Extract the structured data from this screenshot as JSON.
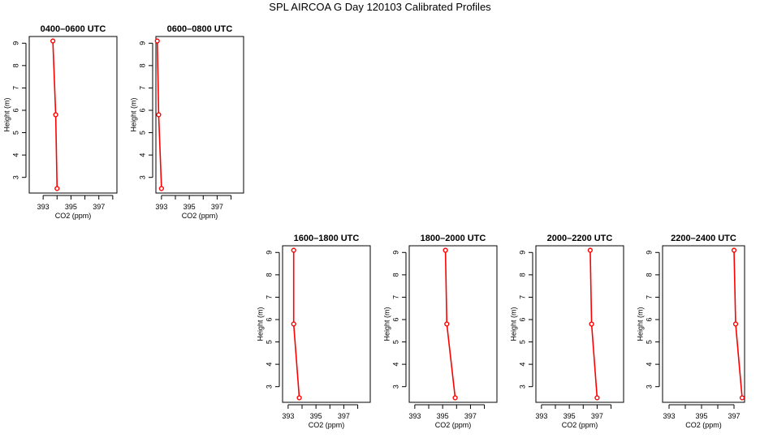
{
  "page": {
    "title": "SPL AIRCOA G  Day 120103  Calibrated Profiles"
  },
  "chart_data": [
    {
      "type": "line",
      "title": "0400–0600 UTC",
      "xlabel": "CO2 (ppm)",
      "ylabel": "Height (m)",
      "xlim": [
        392.0,
        398.3
      ],
      "ylim": [
        2.3,
        9.3
      ],
      "xticks": [
        393,
        394,
        395,
        396,
        397,
        398
      ],
      "xtick_labels": [
        "393",
        "",
        "395",
        "",
        "397",
        ""
      ],
      "yticks": [
        3,
        4,
        5,
        6,
        7,
        8,
        9
      ],
      "series": [
        {
          "x": [
            393.7,
            393.9,
            394.0
          ],
          "y": [
            9.1,
            5.8,
            2.5
          ],
          "color": "#ff0000"
        }
      ]
    },
    {
      "type": "line",
      "title": "0600–0800 UTC",
      "xlabel": "CO2 (ppm)",
      "ylabel": "Height (m)",
      "xlim": [
        392.6,
        398.9
      ],
      "ylim": [
        2.3,
        9.3
      ],
      "xticks": [
        393,
        394,
        395,
        396,
        397,
        398
      ],
      "xtick_labels": [
        "393",
        "",
        "395",
        "",
        "397",
        ""
      ],
      "yticks": [
        3,
        4,
        5,
        6,
        7,
        8,
        9
      ],
      "series": [
        {
          "x": [
            392.7,
            392.8,
            393.0
          ],
          "y": [
            9.1,
            5.8,
            2.5
          ],
          "color": "#ff0000"
        }
      ]
    },
    {
      "type": "line",
      "title": "1600–1800 UTC",
      "xlabel": "CO2 (ppm)",
      "ylabel": "Height (m)",
      "xlim": [
        392.6,
        398.9
      ],
      "ylim": [
        2.3,
        9.3
      ],
      "xticks": [
        393,
        394,
        395,
        396,
        397,
        398
      ],
      "xtick_labels": [
        "393",
        "",
        "395",
        "",
        "397",
        ""
      ],
      "yticks": [
        3,
        4,
        5,
        6,
        7,
        8,
        9
      ],
      "series": [
        {
          "x": [
            393.4,
            393.4,
            393.8
          ],
          "y": [
            9.1,
            5.8,
            2.5
          ],
          "color": "#ff0000"
        }
      ]
    },
    {
      "type": "line",
      "title": "1800–2000 UTC",
      "xlabel": "CO2 (ppm)",
      "ylabel": "Height (m)",
      "xlim": [
        392.6,
        398.9
      ],
      "ylim": [
        2.3,
        9.3
      ],
      "xticks": [
        393,
        394,
        395,
        396,
        397,
        398
      ],
      "xtick_labels": [
        "393",
        "",
        "395",
        "",
        "397",
        ""
      ],
      "yticks": [
        3,
        4,
        5,
        6,
        7,
        8,
        9
      ],
      "series": [
        {
          "x": [
            395.2,
            395.3,
            395.9
          ],
          "y": [
            9.1,
            5.8,
            2.5
          ],
          "color": "#ff0000"
        }
      ]
    },
    {
      "type": "line",
      "title": "2000–2200 UTC",
      "xlabel": "CO2 (ppm)",
      "ylabel": "Height (m)",
      "xlim": [
        392.6,
        398.9
      ],
      "ylim": [
        2.3,
        9.3
      ],
      "xticks": [
        393,
        394,
        395,
        396,
        397,
        398
      ],
      "xtick_labels": [
        "393",
        "",
        "395",
        "",
        "397",
        ""
      ],
      "yticks": [
        3,
        4,
        5,
        6,
        7,
        8,
        9
      ],
      "series": [
        {
          "x": [
            396.5,
            396.6,
            397.0
          ],
          "y": [
            9.1,
            5.8,
            2.5
          ],
          "color": "#ff0000"
        }
      ]
    },
    {
      "type": "line",
      "title": "2200–2400 UTC",
      "xlabel": "CO2 (ppm)",
      "ylabel": "Height (m)",
      "xlim": [
        392.6,
        397.65
      ],
      "ylim": [
        2.3,
        9.3
      ],
      "xticks": [
        393,
        394,
        395,
        396,
        397
      ],
      "xtick_labels": [
        "393",
        "",
        "395",
        "",
        "397"
      ],
      "yticks": [
        3,
        4,
        5,
        6,
        7,
        8,
        9
      ],
      "series": [
        {
          "x": [
            397.0,
            397.1,
            397.5
          ],
          "y": [
            9.1,
            5.8,
            2.5
          ],
          "color": "#ff0000"
        }
      ]
    }
  ]
}
